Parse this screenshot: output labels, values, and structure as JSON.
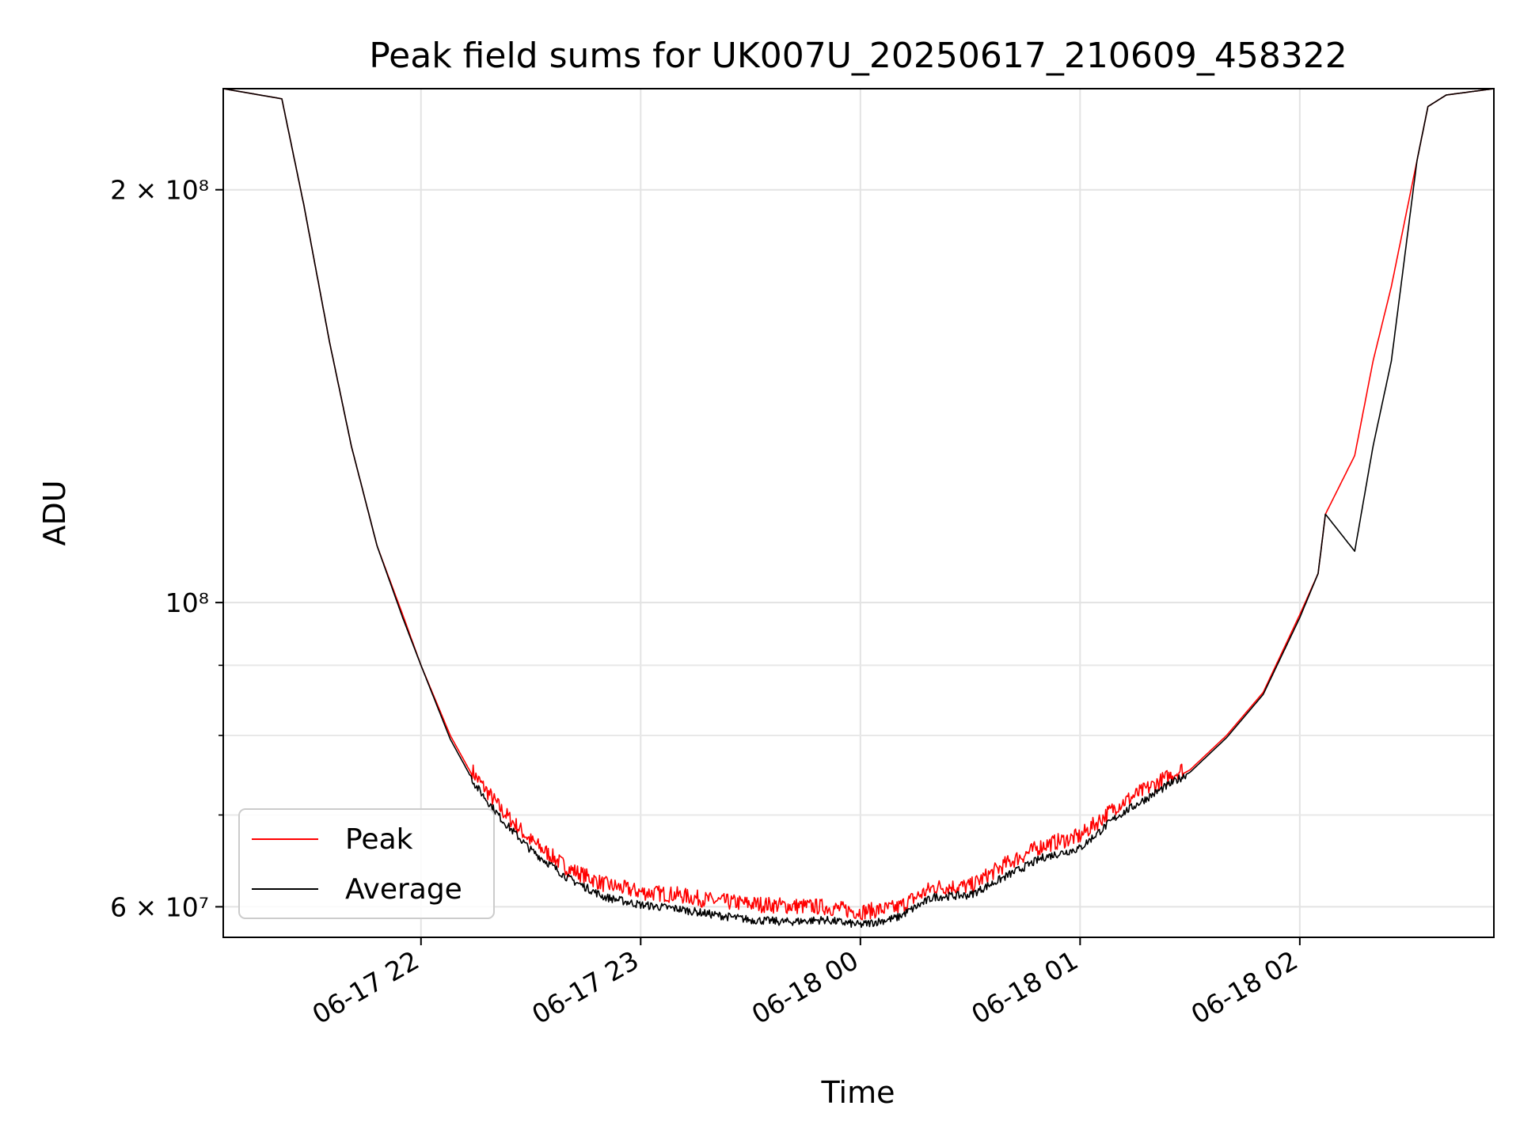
{
  "chart_data": {
    "type": "line",
    "title": "Peak field sums for UK007U_20250617_210609_458322",
    "xlabel": "Time",
    "ylabel": "ADU",
    "yscale": "log",
    "xlim": [
      "2025-06-17 21:06",
      "2025-06-18 02:53"
    ],
    "ylim": [
      57000000,
      237000000
    ],
    "grid": true,
    "legend_position": "lower-left",
    "x_ticks": [
      {
        "value": "2025-06-17 22:00",
        "label": "06-17 22"
      },
      {
        "value": "2025-06-17 23:00",
        "label": "06-17 23"
      },
      {
        "value": "2025-06-18 00:00",
        "label": "06-18 00"
      },
      {
        "value": "2025-06-18 01:00",
        "label": "06-18 01"
      },
      {
        "value": "2025-06-18 02:00",
        "label": "06-18 02"
      }
    ],
    "y_ticks": [
      {
        "value": 60000000,
        "label": "6 × 10⁷"
      },
      {
        "value": 100000000,
        "label": "10⁸"
      },
      {
        "value": 200000000,
        "label": "2 × 10⁸"
      }
    ],
    "y_minor_ticks": [
      70000000,
      80000000,
      90000000
    ],
    "colors": {
      "peak": "#ff0000",
      "average": "#000000"
    },
    "x": [
      "2025-06-17 21:06",
      "2025-06-17 21:22",
      "2025-06-17 21:28",
      "2025-06-17 21:35",
      "2025-06-17 21:41",
      "2025-06-17 21:48",
      "2025-06-17 21:55",
      "2025-06-17 22:00",
      "2025-06-17 22:08",
      "2025-06-17 22:15",
      "2025-06-17 22:22",
      "2025-06-17 22:30",
      "2025-06-17 22:40",
      "2025-06-17 22:50",
      "2025-06-17 23:00",
      "2025-06-17 23:10",
      "2025-06-17 23:20",
      "2025-06-17 23:30",
      "2025-06-17 23:40",
      "2025-06-17 23:50",
      "2025-06-18 00:00",
      "2025-06-18 00:10",
      "2025-06-18 00:20",
      "2025-06-18 00:30",
      "2025-06-18 00:40",
      "2025-06-18 00:50",
      "2025-06-18 01:00",
      "2025-06-18 01:10",
      "2025-06-18 01:20",
      "2025-06-18 01:30",
      "2025-06-18 01:40",
      "2025-06-18 01:50",
      "2025-06-18 02:00",
      "2025-06-18 02:05",
      "2025-06-18 02:07",
      "2025-06-18 02:15",
      "2025-06-18 02:20",
      "2025-06-18 02:25",
      "2025-06-18 02:32",
      "2025-06-18 02:35",
      "2025-06-18 02:40",
      "2025-06-18 02:53"
    ],
    "series": [
      {
        "name": "Peak",
        "color": "#ff0000",
        "values": [
          237000000,
          233000000,
          195000000,
          155000000,
          130000000,
          110000000,
          98000000,
          90000000,
          80000000,
          74000000,
          70000000,
          66500000,
          63500000,
          61800000,
          61000000,
          60700000,
          60100000,
          59800000,
          59600000,
          59500000,
          59000000,
          59400000,
          61500000,
          61600000,
          64000000,
          66000000,
          67000000,
          70500000,
          73000000,
          75500000,
          80000000,
          86000000,
          98000000,
          105000000,
          116000000,
          128000000,
          150000000,
          170000000,
          210000000,
          230000000,
          234500000,
          237000000
        ]
      },
      {
        "name": "Average",
        "color": "#000000",
        "values": [
          237000000,
          233000000,
          195000000,
          155000000,
          130000000,
          110000000,
          97500000,
          90000000,
          79500000,
          73500000,
          69500000,
          66000000,
          63000000,
          61000000,
          60200000,
          59800000,
          59200000,
          58700000,
          58500000,
          58700000,
          58200000,
          58900000,
          61000000,
          61200000,
          63200000,
          65200000,
          66200000,
          69800000,
          72500000,
          75200000,
          79700000,
          85700000,
          97500000,
          105000000,
          116000000,
          109000000,
          130000000,
          150000000,
          210000000,
          230000000,
          234500000,
          237000000
        ]
      }
    ]
  }
}
